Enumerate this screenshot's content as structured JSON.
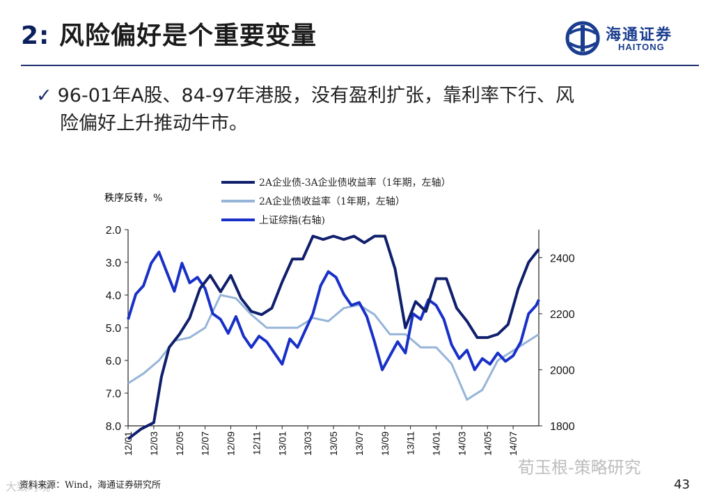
{
  "header": {
    "title_num": "2:",
    "title_text": "风险偏好是个重要变量",
    "logo_cn": "海通证券",
    "logo_en": "HAITONG"
  },
  "bullet": {
    "line1": "96-01年A股、84-97年港股，没有盈利扩张，靠利率下行、风",
    "line2": "险偏好上升推动牛市。"
  },
  "footer": {
    "source": "资料来源：Wind，海通证券研究所",
    "page": "43",
    "watermark": "荀玉根-策略研究",
    "watermark_left": "大致时境"
  },
  "colors": {
    "series1": "#0f1f6b",
    "series2": "#96b4d8",
    "series3": "#1830c8",
    "axis": "#222222",
    "rule": "#1b2e6e"
  },
  "chart_data": {
    "type": "line",
    "unit_label": "秩序反转，%",
    "left_axis": {
      "min": 2.0,
      "max": 8.0,
      "inverted": true,
      "ticks": [
        "2.0",
        "3.0",
        "4.0",
        "5.0",
        "6.0",
        "7.0",
        "8.0"
      ]
    },
    "right_axis": {
      "min": 1800,
      "max": 2500,
      "ticks": [
        "2400",
        "2200",
        "2000",
        "1800"
      ]
    },
    "x_ticks": [
      "12/01",
      "12/03",
      "12/05",
      "12/07",
      "12/09",
      "12/11",
      "13/01",
      "13/03",
      "13/05",
      "13/07",
      "13/09",
      "13/11",
      "14/01",
      "14/03",
      "14/05",
      "14/07"
    ],
    "x_range": [
      0,
      16
    ],
    "series": [
      {
        "name": "2A企业债-3A企业债收益率（1年期，左轴）",
        "axis": "left",
        "x": [
          0,
          0.5,
          1,
          1.3,
          1.6,
          2,
          2.4,
          2.8,
          3.2,
          3.6,
          4,
          4.4,
          4.8,
          5.2,
          5.6,
          6,
          6.4,
          6.8,
          7.2,
          7.6,
          8,
          8.4,
          8.8,
          9.2,
          9.6,
          10,
          10.4,
          10.8,
          11.2,
          11.6,
          12,
          12.4,
          12.8,
          13.2,
          13.6,
          14,
          14.4,
          14.8,
          15.2,
          15.6,
          16
        ],
        "values": [
          8.4,
          8.1,
          7.9,
          6.5,
          5.6,
          5.2,
          4.7,
          3.8,
          3.4,
          3.9,
          3.4,
          4.1,
          4.5,
          4.6,
          4.4,
          3.6,
          2.9,
          2.9,
          2.2,
          2.3,
          2.2,
          2.3,
          2.2,
          2.4,
          2.2,
          2.2,
          3.2,
          5.0,
          4.2,
          4.5,
          3.5,
          3.5,
          4.4,
          4.8,
          5.3,
          5.3,
          5.2,
          4.9,
          3.8,
          3.0,
          2.6
        ]
      },
      {
        "name": "2A企业债收益率（1年期，左轴）",
        "axis": "left",
        "x": [
          0,
          0.6,
          1.2,
          1.8,
          2.4,
          3,
          3.6,
          4.2,
          4.8,
          5.4,
          6,
          6.6,
          7.2,
          7.8,
          8.4,
          9,
          9.6,
          10.2,
          10.8,
          11.4,
          12,
          12.6,
          13.2,
          13.8,
          14.4,
          15,
          15.6,
          16
        ],
        "values": [
          6.7,
          6.4,
          6.0,
          5.4,
          5.3,
          5.0,
          4.0,
          4.1,
          4.6,
          5.0,
          5.0,
          5.0,
          4.7,
          4.8,
          4.4,
          4.3,
          4.6,
          5.2,
          5.2,
          5.6,
          5.6,
          6.1,
          7.2,
          6.9,
          6.0,
          5.7,
          5.4,
          5.2
        ]
      },
      {
        "name": "上证综指(右轴)",
        "axis": "right",
        "x": [
          0,
          0.3,
          0.6,
          0.9,
          1.2,
          1.5,
          1.8,
          2.1,
          2.4,
          2.7,
          3,
          3.3,
          3.6,
          3.9,
          4.2,
          4.5,
          4.8,
          5.1,
          5.4,
          5.7,
          6,
          6.3,
          6.6,
          6.9,
          7.2,
          7.5,
          7.8,
          8.1,
          8.4,
          8.7,
          9,
          9.3,
          9.6,
          9.9,
          10.2,
          10.5,
          10.8,
          11.1,
          11.4,
          11.7,
          12,
          12.3,
          12.6,
          12.9,
          13.2,
          13.5,
          13.8,
          14.1,
          14.4,
          14.7,
          15,
          15.3,
          15.6,
          15.9,
          16
        ],
        "values": [
          2180,
          2270,
          2300,
          2380,
          2420,
          2350,
          2280,
          2380,
          2310,
          2330,
          2290,
          2200,
          2180,
          2130,
          2190,
          2120,
          2080,
          2120,
          2100,
          2060,
          2020,
          2110,
          2080,
          2140,
          2200,
          2300,
          2350,
          2330,
          2270,
          2230,
          2240,
          2190,
          2100,
          2000,
          2050,
          2100,
          2060,
          2200,
          2180,
          2250,
          2230,
          2180,
          2090,
          2040,
          2070,
          2000,
          2040,
          2020,
          2060,
          2030,
          2050,
          2100,
          2200,
          2230,
          2250
        ]
      }
    ]
  }
}
